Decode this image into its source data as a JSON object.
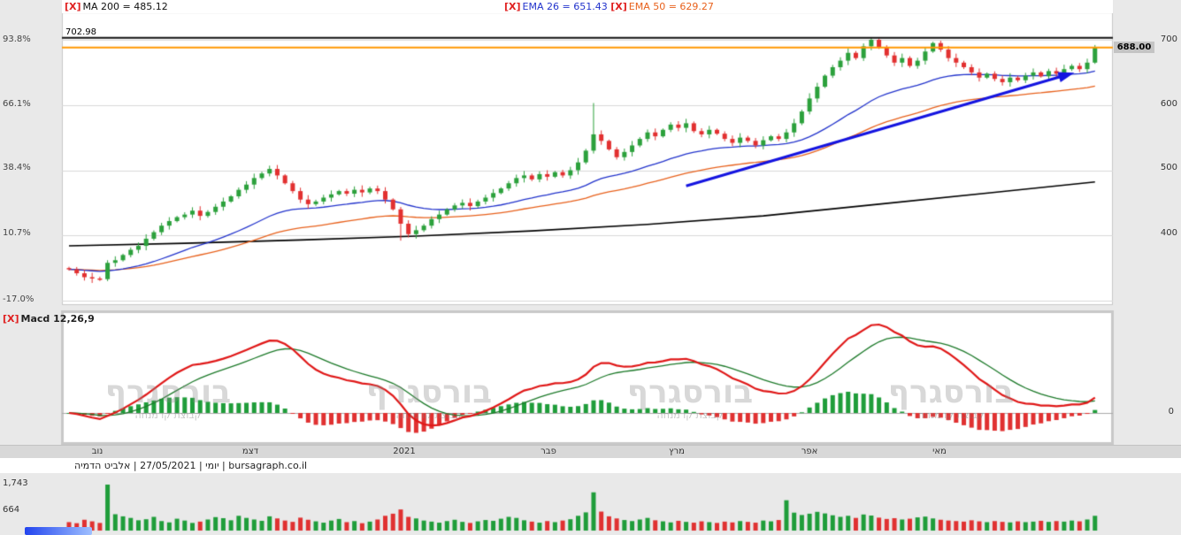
{
  "header": {
    "close_label": "[X]",
    "ma200_legend": "MA 200 = 485.12",
    "ema26_legend": "EMA 26 = 651.43",
    "ema50_legend": "EMA 50 = 629.27"
  },
  "macd_panel": {
    "close_label": "[X]",
    "legend": "Macd 12,26,9",
    "zero_label": "0"
  },
  "annotations": {
    "high_line_label": "702.98",
    "last_price_tag": "688.00"
  },
  "time_axis": [
    "נוב",
    "דצמ",
    "2021",
    "פבר",
    "מרץ",
    "אפר",
    "מאי"
  ],
  "footer_info": "יומי | 27/05/2021 | אלביט הדמיה | bursagraph.co.il",
  "volume_axis": [
    "1,743",
    "664"
  ],
  "watermark": {
    "title": "בורסגרף",
    "subtitle": "קבוצת קו מנחה"
  },
  "colors": {
    "up": "#2ca13c",
    "down": "#e23030",
    "ema26": "#2233cc",
    "ema50": "#e8611c",
    "ma200": "#000000",
    "macd_line": "#e01818",
    "signal_line": "#1d7a2a",
    "hist_up": "#1f9d3a",
    "hist_down": "#e03131",
    "trend": "#1414e0",
    "resistance": "#111111",
    "last_price_line": "#ff9800",
    "grid": "#d9d9d9",
    "plot_bg": "#ffffff",
    "zero_line": "#aaaaaa"
  },
  "chart_data": [
    {
      "type": "candlestick",
      "name": "אלביט הדמיה",
      "timeframe": "יומי",
      "date": "27/05/2021",
      "first_open": 350,
      "closes": [
        348,
        342,
        336,
        334,
        333,
        358,
        362,
        370,
        378,
        384,
        395,
        405,
        415,
        422,
        428,
        432,
        438,
        430,
        436,
        444,
        452,
        460,
        470,
        478,
        488,
        495,
        502,
        492,
        480,
        468,
        455,
        448,
        452,
        458,
        463,
        468,
        464,
        470,
        466,
        472,
        468,
        455,
        440,
        418,
        402,
        408,
        415,
        425,
        432,
        440,
        446,
        450,
        445,
        452,
        458,
        465,
        472,
        480,
        488,
        492,
        486,
        494,
        490,
        497,
        492,
        500,
        512,
        530,
        555,
        545,
        532,
        520,
        528,
        538,
        548,
        558,
        552,
        562,
        570,
        565,
        572,
        560,
        555,
        562,
        556,
        548,
        542,
        550,
        545,
        538,
        546,
        552,
        548,
        558,
        572,
        590,
        610,
        628,
        645,
        658,
        668,
        680,
        672,
        690,
        700,
        688,
        676,
        665,
        672,
        660,
        668,
        682,
        695,
        685,
        672,
        665,
        658,
        650,
        642,
        648,
        640,
        635,
        642,
        638,
        645,
        650,
        644,
        652,
        648,
        655,
        660,
        655,
        665,
        688
      ],
      "high_overrides": {
        "5": 362,
        "26": 507,
        "68": 603,
        "96": 618,
        "104": 703,
        "133": 692
      },
      "low_overrides": {
        "5": 330,
        "43": 392
      },
      "overlays": {
        "ma200_legend_value": 485.12,
        "ema26_legend_value": 651.43,
        "ema50_legend_value": 629.27,
        "ema_periods": [
          26,
          50
        ],
        "ma200_points": [
          [
            0,
            384
          ],
          [
            15,
            388
          ],
          [
            30,
            393
          ],
          [
            45,
            399
          ],
          [
            60,
            407
          ],
          [
            75,
            417
          ],
          [
            90,
            430
          ],
          [
            105,
            448
          ],
          [
            120,
            466
          ],
          [
            133,
            482
          ]
        ],
        "resistance_price": 702.98,
        "last_price": 688.0,
        "trend_line": {
          "from": [
            80,
            476
          ],
          "to": [
            129,
            645
          ]
        }
      },
      "price_ticks": [
        700,
        600,
        500,
        400,
        300
      ],
      "percent_ticks": [
        "93.8%",
        "66.1%",
        "38.4%",
        "10.7%",
        "-17.0%"
      ]
    },
    {
      "type": "macd",
      "params": [
        12,
        26,
        9
      ],
      "zero": 0
    },
    {
      "type": "bar",
      "name": "volume",
      "values": [
        320,
        280,
        410,
        350,
        290,
        1743,
        620,
        540,
        480,
        390,
        430,
        520,
        360,
        310,
        450,
        380,
        290,
        340,
        420,
        510,
        470,
        390,
        560,
        480,
        420,
        370,
        540,
        460,
        380,
        330,
        490,
        410,
        350,
        300,
        380,
        440,
        320,
        360,
        280,
        340,
        420,
        560,
        640,
        800,
        520,
        460,
        380,
        340,
        300,
        360,
        410,
        330,
        290,
        350,
        400,
        370,
        450,
        520,
        480,
        390,
        340,
        300,
        360,
        320,
        380,
        430,
        560,
        690,
        1450,
        720,
        540,
        460,
        400,
        360,
        420,
        480,
        390,
        350,
        310,
        370,
        330,
        300,
        350,
        320,
        290,
        340,
        310,
        360,
        330,
        300,
        380,
        350,
        400,
        1150,
        680,
        590,
        640,
        710,
        650,
        580,
        520,
        560,
        480,
        610,
        570,
        490,
        440,
        470,
        420,
        450,
        500,
        530,
        460,
        410,
        380,
        360,
        340,
        390,
        350,
        320,
        360,
        330,
        310,
        350,
        320,
        340,
        370,
        330,
        360,
        340,
        380,
        350,
        420,
        560
      ],
      "ticks": [
        1743,
        664
      ]
    }
  ]
}
